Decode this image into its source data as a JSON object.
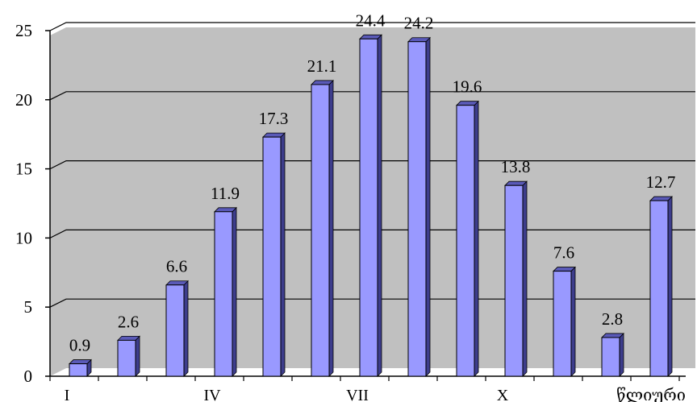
{
  "chart_data": {
    "type": "bar",
    "categories": [
      "I",
      "",
      "",
      "IV",
      "",
      "",
      "VII",
      "",
      "",
      "X",
      "",
      "",
      "წლიური"
    ],
    "values": [
      0.9,
      2.6,
      6.6,
      11.9,
      17.3,
      21.1,
      24.4,
      24.2,
      19.6,
      13.8,
      7.6,
      2.8,
      12.7
    ],
    "value_labels": [
      "0.9",
      "2.6",
      "6.6",
      "11.9",
      "17.3",
      "21.1",
      "24.4",
      "24.2",
      "19.6",
      "13.8",
      "7.6",
      "2.8",
      "12.7"
    ],
    "y_ticks": [
      0,
      5,
      10,
      15,
      20,
      25
    ],
    "y_tick_labels": [
      "0",
      "5",
      "10",
      "15",
      "20",
      "25"
    ],
    "ylim": [
      0,
      25
    ],
    "grid": true,
    "legend": "none",
    "colors": {
      "bar_front": "#9999ff",
      "bar_side": "#3d3d8c",
      "bar_top": "#5a5ab8",
      "plot_background": "#c0c0c0",
      "gridline": "#000000"
    }
  }
}
